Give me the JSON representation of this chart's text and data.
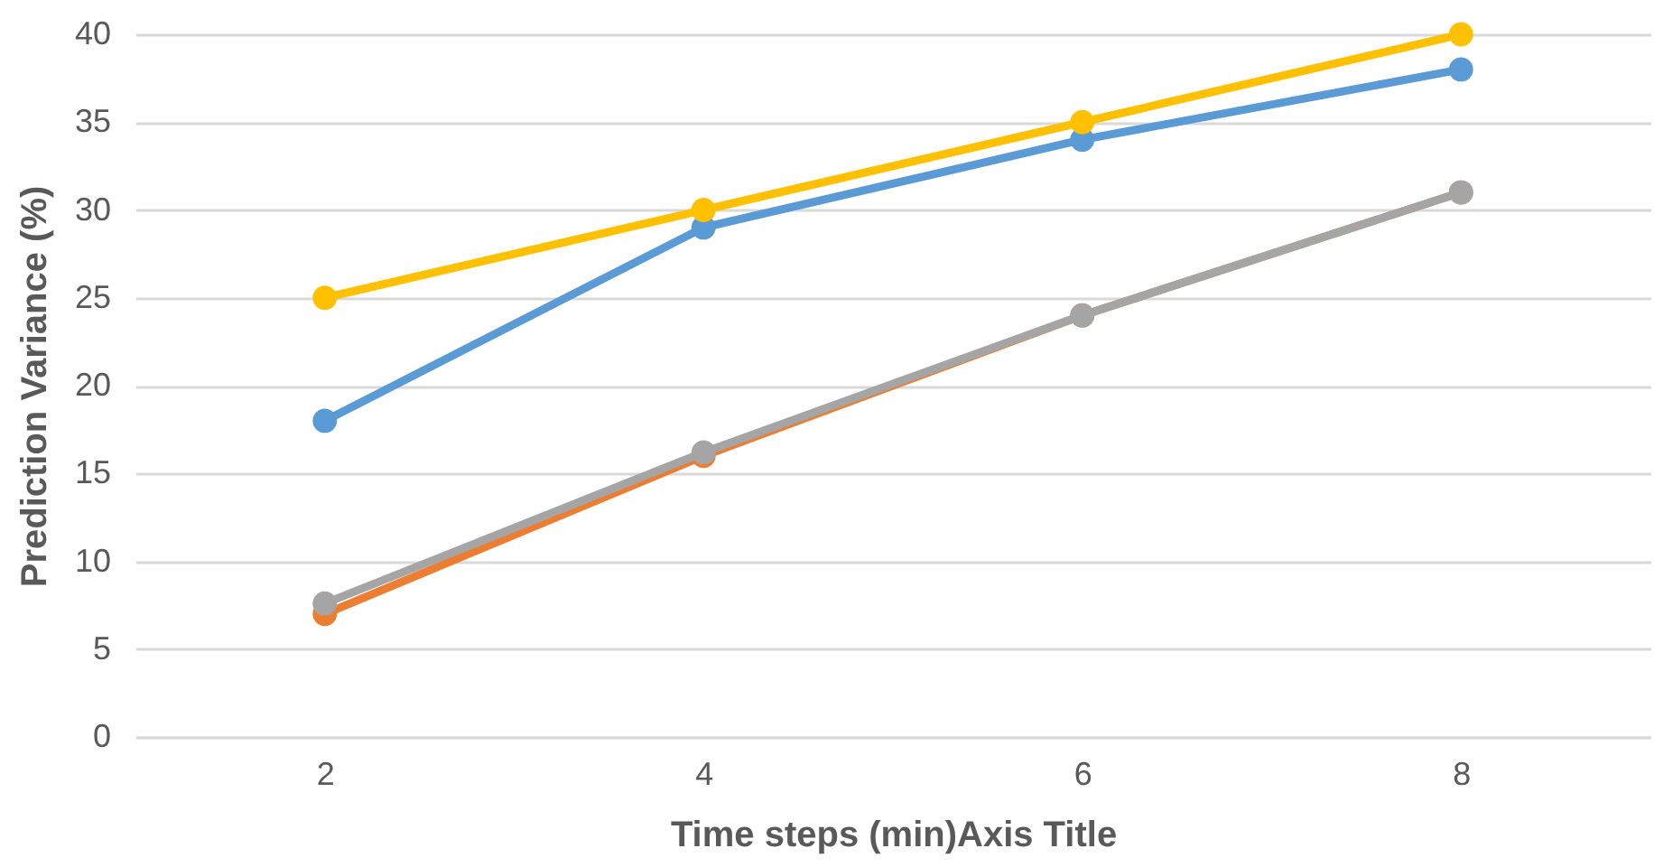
{
  "chart_data": {
    "type": "line",
    "xlabel": "Time steps (min)Axis Title",
    "ylabel": "Prediction Variance (%)",
    "categories": [
      "2",
      "4",
      "6",
      "8"
    ],
    "series": [
      {
        "color": "#5b9bd5",
        "values": [
          18,
          29,
          34,
          38
        ]
      },
      {
        "color": "#ed7d31",
        "values": [
          7,
          16,
          24,
          31
        ]
      },
      {
        "color": "#a5a5a5",
        "values": [
          7.6,
          16.2,
          24,
          31
        ]
      },
      {
        "color": "#ffc000",
        "values": [
          25,
          30,
          35,
          40
        ]
      }
    ],
    "ylim": [
      0,
      40
    ],
    "yticks": [
      0,
      5,
      10,
      15,
      20,
      25,
      30,
      35,
      40
    ],
    "grid": "y",
    "legend": false,
    "marker": "circle",
    "line_style": "solid"
  }
}
